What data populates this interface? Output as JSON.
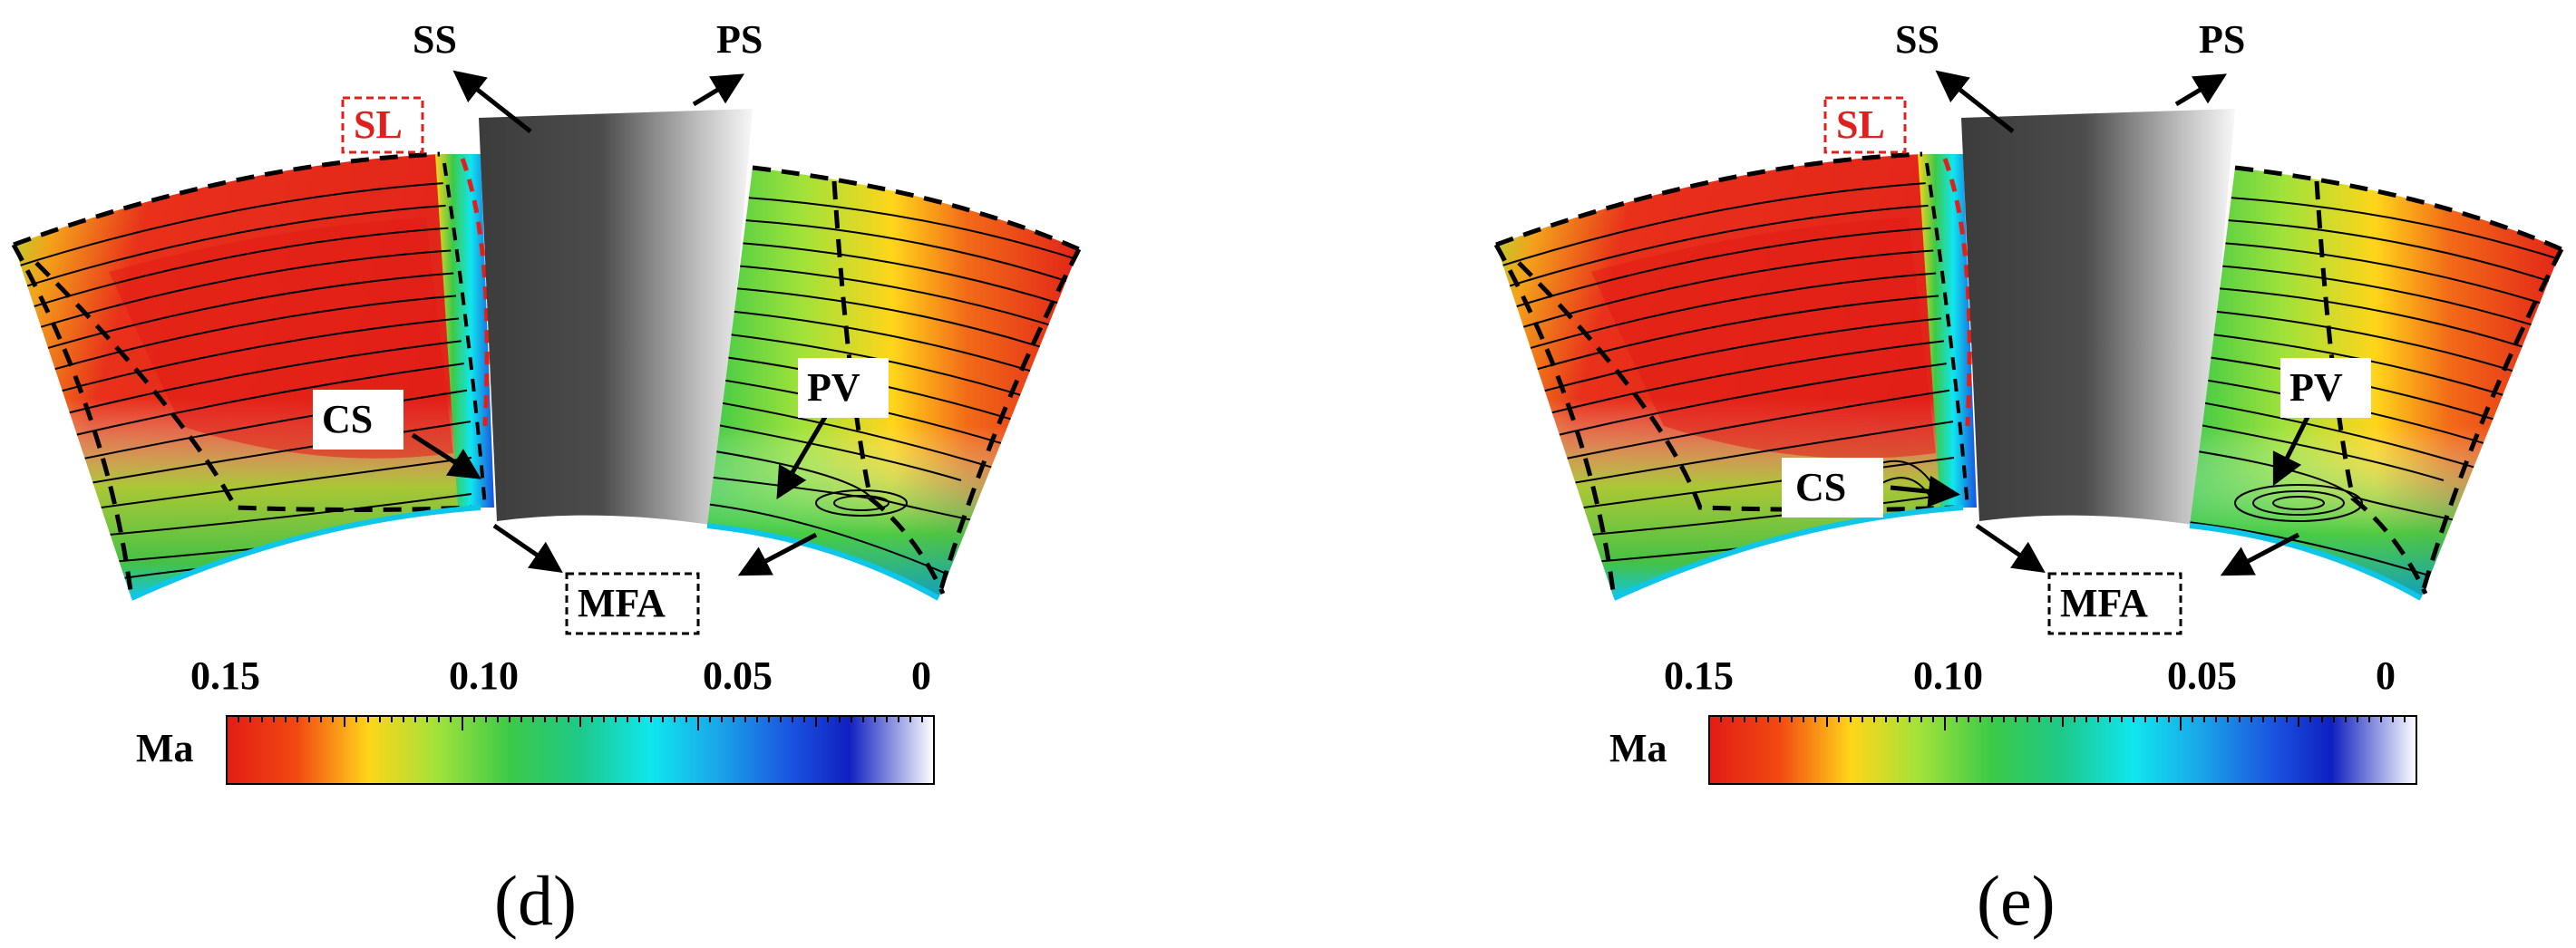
{
  "panels": [
    {
      "id": "d",
      "caption": "(d)",
      "labels": {
        "ss": "SS",
        "ps": "PS",
        "sl": "SL",
        "cs": "CS",
        "pv": "PV",
        "mfa": "MFA"
      },
      "colorbar": {
        "title": "Ma",
        "ticks": [
          "0.15",
          "0.10",
          "0.05",
          "0"
        ]
      }
    },
    {
      "id": "e",
      "caption": "(e)",
      "labels": {
        "ss": "SS",
        "ps": "PS",
        "sl": "SL",
        "cs": "CS",
        "pv": "PV",
        "mfa": "MFA"
      },
      "colorbar": {
        "title": "Ma",
        "ticks": [
          "0.15",
          "0.10",
          "0.05",
          "0"
        ]
      }
    }
  ],
  "colors": {
    "red_label": "#e0201c",
    "blade_dark": "#3a3a3a",
    "blade_light": "#f2f2f2",
    "colormap": [
      "#e21c16",
      "#f24a12",
      "#ffd51a",
      "#9fe23a",
      "#3cc948",
      "#1ec98a",
      "#10e6ee",
      "#1aa2e8",
      "#1a52e0",
      "#1020c0",
      "#ffffff"
    ]
  }
}
